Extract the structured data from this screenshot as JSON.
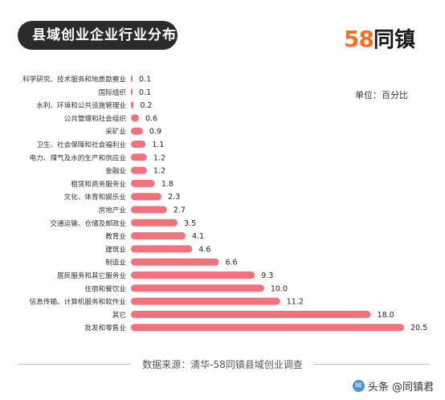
{
  "header": {
    "title": "县域创业企业行业分布",
    "logo_number": "58",
    "logo_word": "同镇"
  },
  "unit_label": "单位：百分比",
  "source_text": "数据来源：清华-58同镇县域创业调查",
  "watermark": {
    "text": "头条 @同镇君",
    "icon": "toutiao-icon"
  },
  "colors": {
    "bar": "#f0727d",
    "title_background": "#2b2b2b",
    "logo_orange": "#f36f21"
  },
  "chart_data": {
    "type": "bar",
    "orientation": "horizontal",
    "categories": [
      "科学研究、技术服务和地质勘察业",
      "国际组织",
      "水利、环境和公共设施管理业",
      "公共管理和社会组织",
      "采矿业",
      "卫生、社会保障和社会福利业",
      "电力、煤气及水的生产和供应业",
      "金融业",
      "租赁和商务服务业",
      "文化、体育和娱乐业",
      "房地产业",
      "交通运输、仓储及邮政业",
      "教育业",
      "建筑业",
      "制造业",
      "居民服务和其它服务业",
      "住宿和餐饮业",
      "信息传输、计算机服务和软件业",
      "其它",
      "批发和零售业"
    ],
    "values": [
      0.1,
      0.1,
      0.2,
      0.6,
      0.9,
      1.1,
      1.2,
      1.2,
      1.8,
      2.3,
      2.7,
      3.5,
      4.1,
      4.6,
      6.6,
      9.3,
      10.0,
      11.2,
      18.0,
      20.5
    ],
    "value_labels": [
      "0.1",
      "0.1",
      "0.2",
      "0.6",
      "0.9",
      "1.1",
      "1.2",
      "1.2",
      "1.8",
      "2.3",
      "2.7",
      "3.5",
      "4.1",
      "4.6",
      "6.6",
      "9.3",
      "10.0",
      "11.2",
      "18.0",
      "20.5"
    ],
    "title": "县域创业企业行业分布",
    "xlabel": "",
    "ylabel": "",
    "xlim": [
      0,
      20.5
    ],
    "grid": false,
    "legend": "none"
  }
}
